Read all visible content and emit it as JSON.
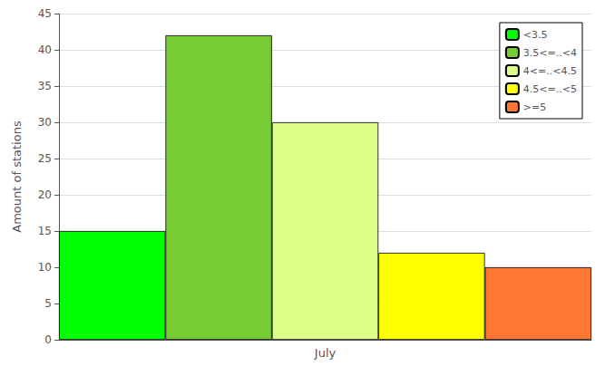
{
  "chart_data": {
    "type": "bar",
    "ylabel": "Amount of stations",
    "categories": [
      "July"
    ],
    "series": [
      {
        "name": "<3.5",
        "color": "#00ff00",
        "values": [
          15
        ]
      },
      {
        "name": "3.5<=..<4",
        "color": "#77cc33",
        "values": [
          42
        ]
      },
      {
        "name": "4<=..<4.5",
        "color": "#ddff88",
        "values": [
          30
        ]
      },
      {
        "name": "4.5<=..<5",
        "color": "#ffff00",
        "values": [
          12
        ]
      },
      {
        "name": ">=5",
        "color": "#ff7733",
        "values": [
          10
        ]
      }
    ],
    "ylim": [
      0,
      45
    ],
    "yticks": [
      0,
      5,
      10,
      15,
      20,
      25,
      30,
      35,
      40,
      45
    ],
    "grid": true,
    "legend": "upper right"
  }
}
